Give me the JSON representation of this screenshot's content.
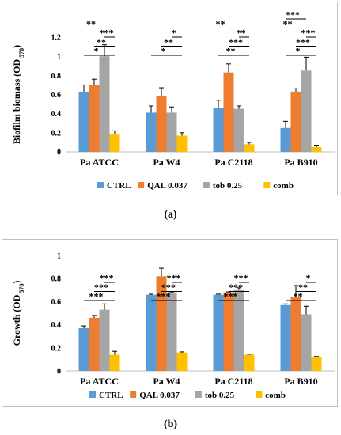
{
  "chart_data": [
    {
      "type": "bar",
      "panel": "a",
      "caption": "(a)",
      "ylabel": "Biofilm biomass (OD",
      "ylabel_sub": "570",
      "ylabel_end": ")",
      "ylim": [
        0,
        1.2
      ],
      "yticks": [
        "0",
        "0.2",
        "0.4",
        "0.6",
        "0.8",
        "1",
        "1.2"
      ],
      "categories": [
        "Pa ATCC",
        "Pa W4",
        "Pa C2118",
        "Pa B910"
      ],
      "series": [
        {
          "name": "CTRL",
          "color": "#5B9BD5",
          "values": [
            0.63,
            0.41,
            0.46,
            0.25
          ],
          "errors": [
            0.07,
            0.07,
            0.08,
            0.07
          ]
        },
        {
          "name": "QAL 0.037",
          "color": "#ED7D31",
          "values": [
            0.7,
            0.58,
            0.83,
            0.63
          ],
          "errors": [
            0.06,
            0.09,
            0.09,
            0.03
          ]
        },
        {
          "name": "tob 0.25",
          "color": "#A5A5A5",
          "values": [
            1.0,
            0.41,
            0.45,
            0.85
          ],
          "errors": [
            0.12,
            0.06,
            0.03,
            0.14
          ]
        },
        {
          "name": "comb",
          "color": "#FFC000",
          "values": [
            0.19,
            0.17,
            0.08,
            0.05
          ],
          "errors": [
            0.03,
            0.03,
            0.02,
            0.02
          ]
        }
      ],
      "annotations": [
        {
          "group": 0,
          "from": 0,
          "to": 3,
          "level": 0,
          "label": "*"
        },
        {
          "group": 0,
          "from": 1,
          "to": 3,
          "level": 1,
          "label": "**"
        },
        {
          "group": 0,
          "from": 2,
          "to": 3,
          "level": 2,
          "label": "***"
        },
        {
          "group": 0,
          "from": 0,
          "to": 2,
          "level": 3,
          "label": "**"
        },
        {
          "group": 1,
          "from": 0,
          "to": 3,
          "level": 0,
          "label": "*"
        },
        {
          "group": 1,
          "from": 1,
          "to": 3,
          "level": 1,
          "label": "**"
        },
        {
          "group": 1,
          "from": 2,
          "to": 3,
          "level": 2,
          "label": "*"
        },
        {
          "group": 2,
          "from": 0,
          "to": 3,
          "level": 0,
          "label": "**"
        },
        {
          "group": 2,
          "from": 1,
          "to": 3,
          "level": 1,
          "label": "***"
        },
        {
          "group": 2,
          "from": 2,
          "to": 3,
          "level": 2,
          "label": "**"
        },
        {
          "group": 2,
          "from": 0,
          "to": 1,
          "level": 3,
          "label": "**"
        },
        {
          "group": 3,
          "from": 0,
          "to": 3,
          "level": 0,
          "label": "*"
        },
        {
          "group": 3,
          "from": 1,
          "to": 3,
          "level": 1,
          "label": "***"
        },
        {
          "group": 3,
          "from": 2,
          "to": 3,
          "level": 2,
          "label": "***"
        },
        {
          "group": 3,
          "from": 0,
          "to": 1,
          "level": 3,
          "label": "**"
        },
        {
          "group": 3,
          "from": 0,
          "to": 2,
          "level": 4,
          "label": "***"
        }
      ],
      "legend": "bottom"
    },
    {
      "type": "bar",
      "panel": "b",
      "caption": "(b)",
      "ylabel": "Growth (OD",
      "ylabel_sub": "570",
      "ylabel_end": ")",
      "ylim": [
        0,
        1
      ],
      "yticks": [
        "0",
        "0.2",
        "0.4",
        "0.6",
        "0.8",
        "1"
      ],
      "categories": [
        "Pa ATCC",
        "Pa W4",
        "Pa C2118",
        "Pa B910"
      ],
      "series": [
        {
          "name": "CTRL",
          "color": "#5B9BD5",
          "values": [
            0.37,
            0.66,
            0.66,
            0.57
          ],
          "errors": [
            0.02,
            0.005,
            0.005,
            0.01
          ]
        },
        {
          "name": "QAL 0.037",
          "color": "#ED7D31",
          "values": [
            0.46,
            0.82,
            0.68,
            0.64
          ],
          "errors": [
            0.02,
            0.07,
            0.005,
            0.1
          ]
        },
        {
          "name": "tob 0.25",
          "color": "#A5A5A5",
          "values": [
            0.53,
            0.68,
            0.7,
            0.49
          ],
          "errors": [
            0.05,
            0.005,
            0.02,
            0.07
          ]
        },
        {
          "name": "comb",
          "color": "#FFC000",
          "values": [
            0.14,
            0.16,
            0.14,
            0.12
          ],
          "errors": [
            0.03,
            0.005,
            0.005,
            0.005
          ]
        }
      ],
      "annotations": [
        {
          "group": 0,
          "from": 0,
          "to": 3,
          "level": 0,
          "label": "***"
        },
        {
          "group": 0,
          "from": 1,
          "to": 3,
          "level": 1,
          "label": "***"
        },
        {
          "group": 0,
          "from": 2,
          "to": 3,
          "level": 2,
          "label": "***"
        },
        {
          "group": 1,
          "from": 0,
          "to": 3,
          "level": 0,
          "label": "***"
        },
        {
          "group": 1,
          "from": 1,
          "to": 3,
          "level": 1,
          "label": "***"
        },
        {
          "group": 1,
          "from": 2,
          "to": 3,
          "level": 2,
          "label": "***"
        },
        {
          "group": 2,
          "from": 0,
          "to": 3,
          "level": 0,
          "label": "***"
        },
        {
          "group": 2,
          "from": 1,
          "to": 3,
          "level": 1,
          "label": "***"
        },
        {
          "group": 2,
          "from": 2,
          "to": 3,
          "level": 2,
          "label": "***"
        },
        {
          "group": 3,
          "from": 0,
          "to": 3,
          "level": 0,
          "label": "**"
        },
        {
          "group": 3,
          "from": 1,
          "to": 3,
          "level": 1,
          "label": "**"
        },
        {
          "group": 3,
          "from": 2,
          "to": 3,
          "level": 2,
          "label": "*"
        }
      ],
      "legend": "bottom"
    }
  ]
}
